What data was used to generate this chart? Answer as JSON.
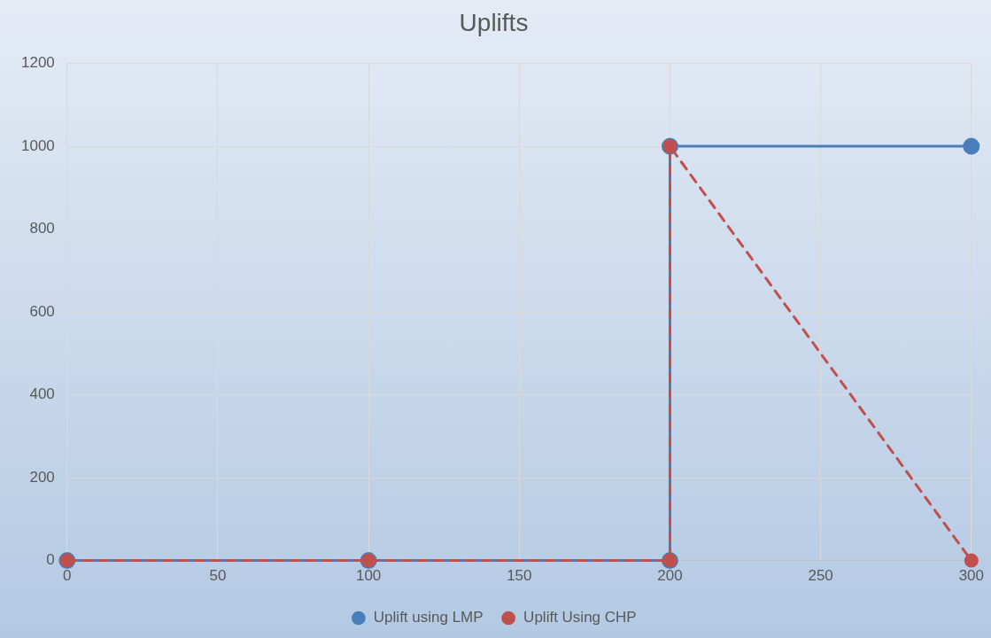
{
  "chart_data": {
    "type": "line",
    "title": "Uplifts",
    "series": [
      {
        "name": "Uplift using LMP",
        "color": "#4a7ebb",
        "x": [
          0,
          100,
          200,
          200,
          300
        ],
        "values": [
          0,
          0,
          0,
          1000,
          1000
        ],
        "line_style": "solid"
      },
      {
        "name": "Uplift Using CHP",
        "color": "#c0504d",
        "x": [
          0,
          100,
          200,
          200,
          300
        ],
        "values": [
          0,
          0,
          0,
          1000,
          0
        ],
        "line_style": "dashed"
      }
    ],
    "xlim": [
      0,
      300
    ],
    "xticks": [
      0,
      50,
      100,
      150,
      200,
      250,
      300
    ],
    "ylim": [
      0,
      1200
    ],
    "yticks": [
      0,
      200,
      400,
      600,
      800,
      1000,
      1200
    ],
    "grid": true,
    "legend": "bottom",
    "marker": "circle"
  }
}
